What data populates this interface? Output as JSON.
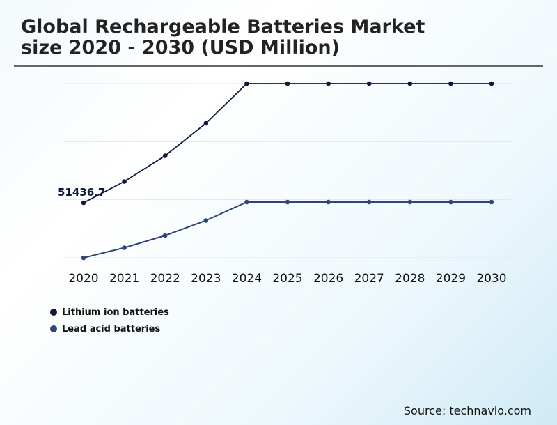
{
  "title_line1": "Global Rechargeable Batteries Market",
  "title_line2": "size 2020 - 2030 (USD Million)",
  "source": "Source: technavio.com",
  "chart_data": {
    "type": "line",
    "title": "Global Rechargeable Batteries Market size 2020 - 2030 (USD Million)",
    "categories": [
      "2020",
      "2021",
      "2022",
      "2023",
      "2024",
      "2025",
      "2026",
      "2027",
      "2028",
      "2029",
      "2030"
    ],
    "series": [
      {
        "name": "Lithium ion batteries",
        "color": "#0b1a3d",
        "values": [
          51436.7,
          69737,
          91937,
          119837,
          154037,
          154037,
          154037,
          154037,
          154037,
          154037,
          154037
        ]
      },
      {
        "name": "Lead acid batteries",
        "color": "#2e4577",
        "values": [
          4037,
          12737,
          23237,
          36137,
          52037,
          52037,
          52037,
          52037,
          52037,
          52037,
          52037
        ]
      }
    ],
    "data_labels": [
      {
        "series": 0,
        "index": 0,
        "text": "51436.7"
      }
    ],
    "ylim": [
      4037,
      154037
    ],
    "grid": true,
    "gridlines": 4,
    "legend": "bottom-left",
    "y_tick_labels_shown": false
  }
}
